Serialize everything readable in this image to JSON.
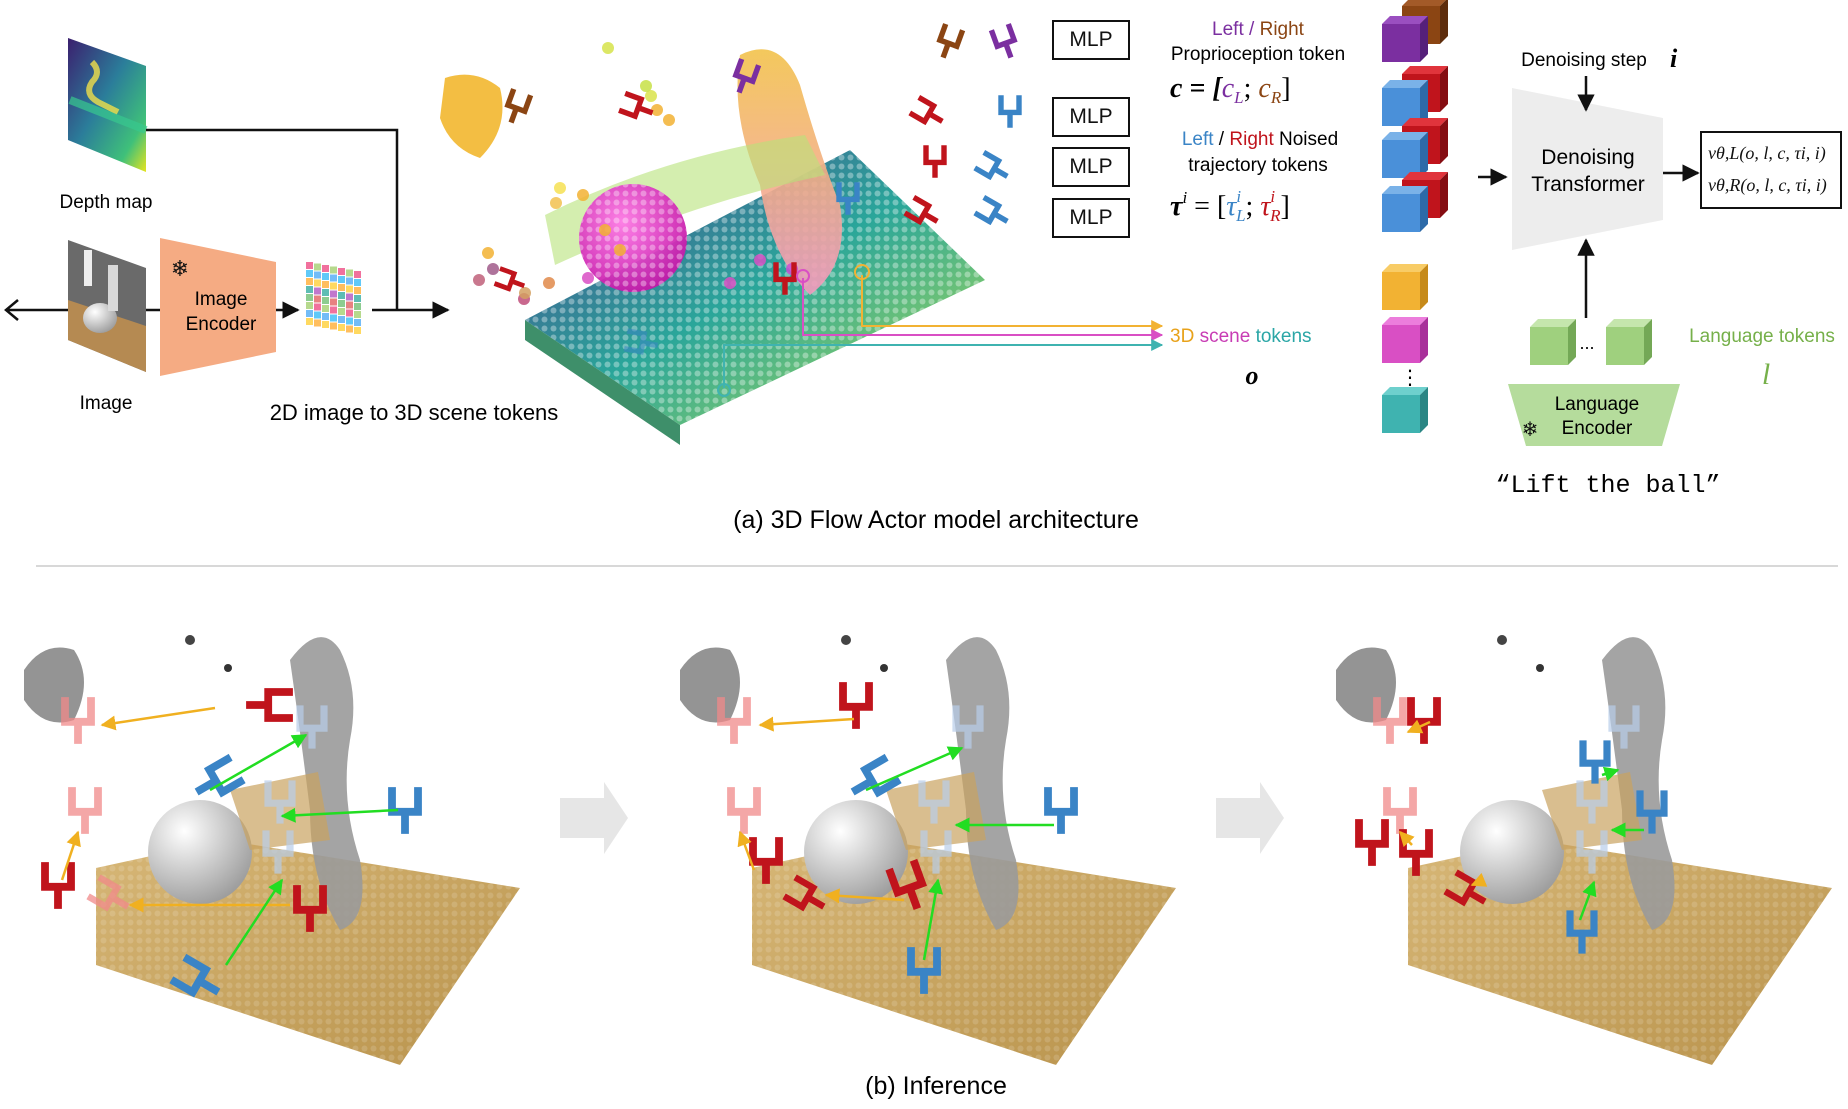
{
  "part_a": {
    "depth_map_label": "Depth map",
    "image_label": "Image",
    "image_encoder_label_1": "Image",
    "image_encoder_label_2": "Encoder",
    "lift_label": "2D image to 3D scene tokens",
    "mlp_label": "MLP",
    "proprio": {
      "left": "Left",
      "sep": " / ",
      "right": "Right",
      "title": "Proprioception token",
      "eq_lhs": "c = [",
      "cl": "c",
      "cl_sub": "L",
      "semi": "; ",
      "cr": "c",
      "cr_sub": "R",
      "close": "]"
    },
    "traj": {
      "left": "Left",
      "sep": " / ",
      "right": "Right",
      "title_rest": " Noised",
      "title2": "trajectory tokens",
      "lhs": "τ",
      "lhs_sup": "i",
      "eq": " = [",
      "tl": "τ",
      "tl_sup": "i",
      "tl_sub": "L",
      "semi": "; ",
      "tr": "τ",
      "tr_sup": "i",
      "tr_sub": "R",
      "close": "]"
    },
    "scene_tokens": {
      "w1": "3D",
      "w2": "scene",
      "w3": "tokens",
      "symbol": "o"
    },
    "denoising_step_label": "Denoising step",
    "denoising_step_symbol": "i",
    "transformer_label_1": "Denoising",
    "transformer_label_2": "Transformer",
    "output_1": "vθ,L(o, l, c, τi, i)",
    "output_2": "vθ,R(o, l, c, τi, i)",
    "language_tokens_label": "Language tokens",
    "language_symbol": "l",
    "language_encoder_1": "Language",
    "language_encoder_2": "Encoder",
    "instruction": "“Lift the ball”",
    "ellipsis": "...",
    "vdots": "⋮",
    "caption": "(a) 3D Flow Actor model architecture"
  },
  "part_b": {
    "caption": "(b) Inference"
  },
  "colors": {
    "left_arm": "#7b2fa0",
    "left_gripper_blue": "#3a84c6",
    "right_gripper_red": "#c0141c",
    "right_brown": "#8b4513",
    "scene_orange": "#f2b233",
    "scene_magenta": "#d94fc4",
    "scene_teal": "#3fb3b0",
    "language_green": "#9fd07e",
    "encoder_peach": "#f4a77c",
    "flow_green": "#22dd22",
    "flow_orange": "#f0b020",
    "table_tan": "#c9a35f"
  },
  "icons": [
    "snowflake-icon",
    "eye-icon",
    "arrow-right-icon"
  ]
}
